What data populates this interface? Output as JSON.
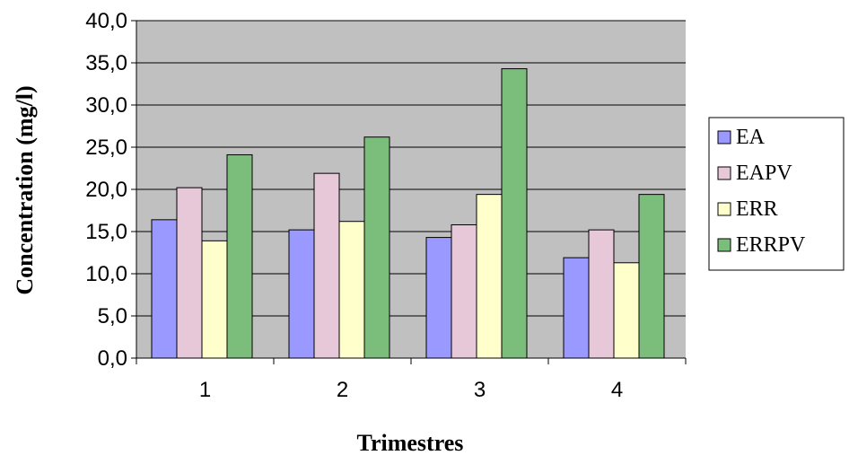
{
  "chart_data": {
    "type": "bar",
    "xlabel": "Trimestres",
    "ylabel": "Concentration (mg/l)",
    "categories": [
      "1",
      "2",
      "3",
      "4"
    ],
    "ylim": [
      0,
      40
    ],
    "ytick_step": 5,
    "ytick_labels": [
      "0,0",
      "5,0",
      "10,0",
      "15,0",
      "20,0",
      "25,0",
      "30,0",
      "35,0",
      "40,0"
    ],
    "grid": true,
    "legend_position": "right",
    "plot_background": "#c0c0c0",
    "series": [
      {
        "name": "EA",
        "color": "#9999ff",
        "values": [
          16.4,
          15.2,
          14.3,
          11.9
        ]
      },
      {
        "name": "EAPV",
        "color": "#e6c8d8",
        "values": [
          20.2,
          21.9,
          15.8,
          15.2
        ]
      },
      {
        "name": "ERR",
        "color": "#ffffcc",
        "values": [
          13.9,
          16.2,
          19.4,
          11.3
        ]
      },
      {
        "name": "ERRPV",
        "color": "#7bbd7b",
        "values": [
          24.1,
          26.2,
          34.3,
          19.4
        ]
      }
    ]
  }
}
